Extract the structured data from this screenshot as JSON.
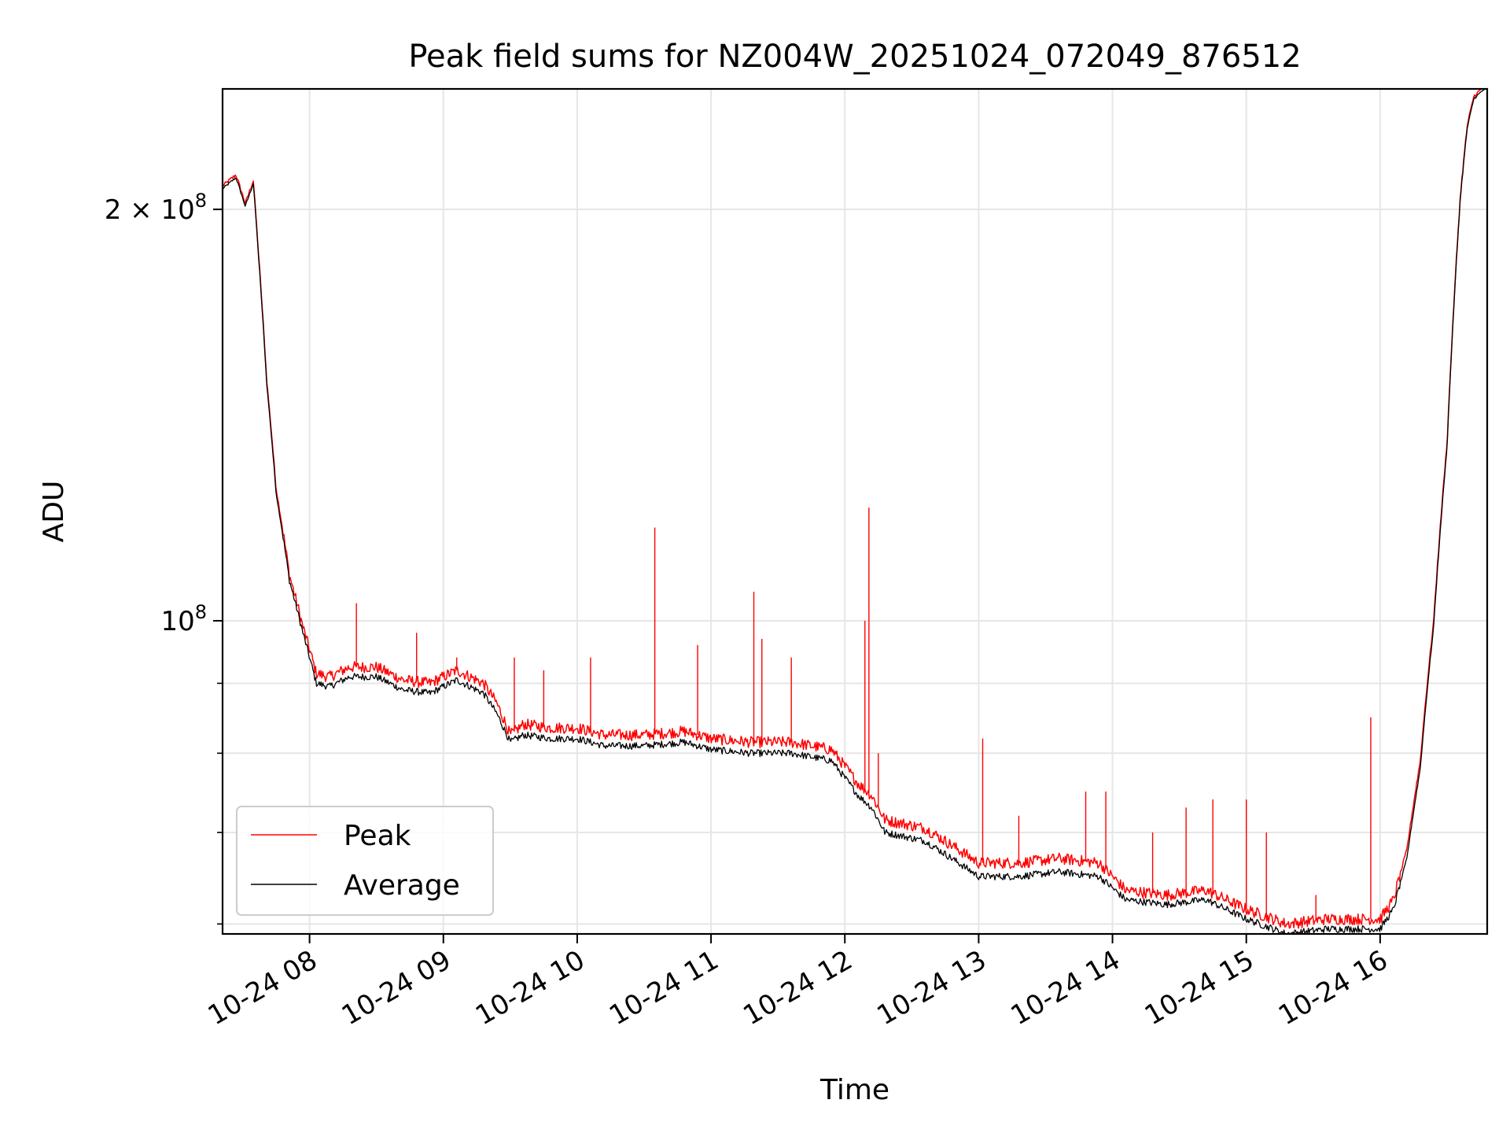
{
  "chart_data": {
    "type": "line",
    "title": "Peak field sums for NZ004W_20251024_072049_876512",
    "xlabel": "Time",
    "ylabel": "ADU",
    "yscale": "log",
    "grid": true,
    "legend_position": "lower-left",
    "x_unit": "hours",
    "xlim": [
      7.35,
      16.8
    ],
    "ylim": [
      59000000.0,
      245000000.0
    ],
    "x_ticks": [
      8,
      9,
      10,
      11,
      12,
      13,
      14,
      15,
      16
    ],
    "x_tick_labels": [
      "10-24 08",
      "10-24 09",
      "10-24 10",
      "10-24 11",
      "10-24 12",
      "10-24 13",
      "10-24 14",
      "10-24 15",
      "10-24 16"
    ],
    "y_major_ticks": [
      100000000.0,
      200000000.0
    ],
    "y_major_labels": {
      "base": "10",
      "exp": "8",
      "prefix": "2 × "
    },
    "y_minor_ticks": [
      60000000.0,
      70000000.0,
      80000000.0,
      90000000.0
    ],
    "series": [
      {
        "name": "Peak",
        "color": "#ff0000",
        "x": [
          7.35,
          7.45,
          7.52,
          7.58,
          7.62,
          7.68,
          7.75,
          7.85,
          7.95,
          8.05,
          8.15,
          8.3,
          8.5,
          8.7,
          8.9,
          9.1,
          9.3,
          9.4,
          9.5,
          9.6,
          9.8,
          10.0,
          10.2,
          10.5,
          10.8,
          11.0,
          11.3,
          11.6,
          11.9,
          12.1,
          12.2,
          12.3,
          12.6,
          12.9,
          13.0,
          13.3,
          13.6,
          13.9,
          14.1,
          14.4,
          14.7,
          15.0,
          15.3,
          15.6,
          15.9,
          16.0,
          16.1,
          16.2,
          16.3,
          16.4,
          16.5,
          16.55,
          16.6,
          16.65,
          16.7,
          16.8
        ],
        "y": [
          208000000.0,
          212000000.0,
          202000000.0,
          210000000.0,
          185000000.0,
          150000000.0,
          125000000.0,
          108000000.0,
          99000000.0,
          91500000.0,
          91000000.0,
          92500000.0,
          92500000.0,
          90500000.0,
          90000000.0,
          92000000.0,
          90000000.0,
          87000000.0,
          82500000.0,
          84000000.0,
          83500000.0,
          83500000.0,
          82500000.0,
          82500000.0,
          83000000.0,
          82000000.0,
          81500000.0,
          81500000.0,
          80500000.0,
          76000000.0,
          74500000.0,
          71500000.0,
          70500000.0,
          67500000.0,
          66500000.0,
          66500000.0,
          67000000.0,
          66500000.0,
          63500000.0,
          63000000.0,
          63500000.0,
          61500000.0,
          60000000.0,
          60500000.0,
          60500000.0,
          60500000.0,
          62500000.0,
          68000000.0,
          79000000.0,
          100000000.0,
          135000000.0,
          170000000.0,
          205000000.0,
          230000000.0,
          242000000.0,
          247000000.0
        ]
      },
      {
        "name": "Average",
        "color": "#000000",
        "x": [
          7.35,
          7.45,
          7.52,
          7.58,
          7.62,
          7.68,
          7.75,
          7.85,
          7.95,
          8.05,
          8.15,
          8.3,
          8.5,
          8.7,
          8.9,
          9.1,
          9.3,
          9.4,
          9.5,
          9.6,
          9.8,
          10.0,
          10.2,
          10.5,
          10.8,
          11.0,
          11.3,
          11.6,
          11.9,
          12.1,
          12.2,
          12.3,
          12.6,
          12.9,
          13.0,
          13.3,
          13.6,
          13.9,
          14.1,
          14.4,
          14.7,
          15.0,
          15.3,
          15.6,
          15.9,
          16.0,
          16.1,
          16.2,
          16.3,
          16.4,
          16.5,
          16.55,
          16.6,
          16.65,
          16.7,
          16.8
        ],
        "y": [
          207000000.0,
          211000000.0,
          201000000.0,
          209000000.0,
          184000000.0,
          149000000.0,
          124000000.0,
          107000000.0,
          98000000.0,
          90000000.0,
          89500000.0,
          91000000.0,
          91000000.0,
          89000000.0,
          88500000.0,
          90500000.0,
          88500000.0,
          85500000.0,
          81500000.0,
          82500000.0,
          82000000.0,
          82000000.0,
          81000000.0,
          81000000.0,
          81500000.0,
          80500000.0,
          80000000.0,
          80000000.0,
          79000000.0,
          74500000.0,
          73000000.0,
          70000000.0,
          69000000.0,
          66000000.0,
          65000000.0,
          65000000.0,
          65500000.0,
          65000000.0,
          62500000.0,
          62000000.0,
          62500000.0,
          60500000.0,
          59000000.0,
          59500000.0,
          59500000.0,
          59500000.0,
          61500000.0,
          67000000.0,
          78000000.0,
          99000000.0,
          134000000.0,
          169000000.0,
          204000000.0,
          229000000.0,
          241000000.0,
          246000000.0
        ]
      }
    ],
    "peak_spikes": [
      {
        "x": 8.35,
        "y": 103000000.0
      },
      {
        "x": 8.8,
        "y": 98000000.0
      },
      {
        "x": 9.1,
        "y": 94000000.0
      },
      {
        "x": 9.53,
        "y": 94000000.0
      },
      {
        "x": 9.75,
        "y": 92000000.0
      },
      {
        "x": 10.1,
        "y": 94000000.0
      },
      {
        "x": 10.58,
        "y": 117000000.0
      },
      {
        "x": 10.9,
        "y": 96000000.0
      },
      {
        "x": 11.32,
        "y": 105000000.0
      },
      {
        "x": 11.38,
        "y": 97000000.0
      },
      {
        "x": 11.6,
        "y": 94000000.0
      },
      {
        "x": 12.15,
        "y": 100000000.0
      },
      {
        "x": 12.18,
        "y": 121000000.0
      },
      {
        "x": 12.25,
        "y": 80000000.0
      },
      {
        "x": 13.03,
        "y": 82000000.0
      },
      {
        "x": 13.3,
        "y": 72000000.0
      },
      {
        "x": 13.8,
        "y": 75000000.0
      },
      {
        "x": 13.95,
        "y": 75000000.0
      },
      {
        "x": 14.3,
        "y": 70000000.0
      },
      {
        "x": 14.55,
        "y": 73000000.0
      },
      {
        "x": 14.75,
        "y": 74000000.0
      },
      {
        "x": 15.0,
        "y": 74000000.0
      },
      {
        "x": 15.15,
        "y": 70000000.0
      },
      {
        "x": 15.52,
        "y": 63000000.0
      },
      {
        "x": 15.93,
        "y": 85000000.0
      }
    ]
  }
}
